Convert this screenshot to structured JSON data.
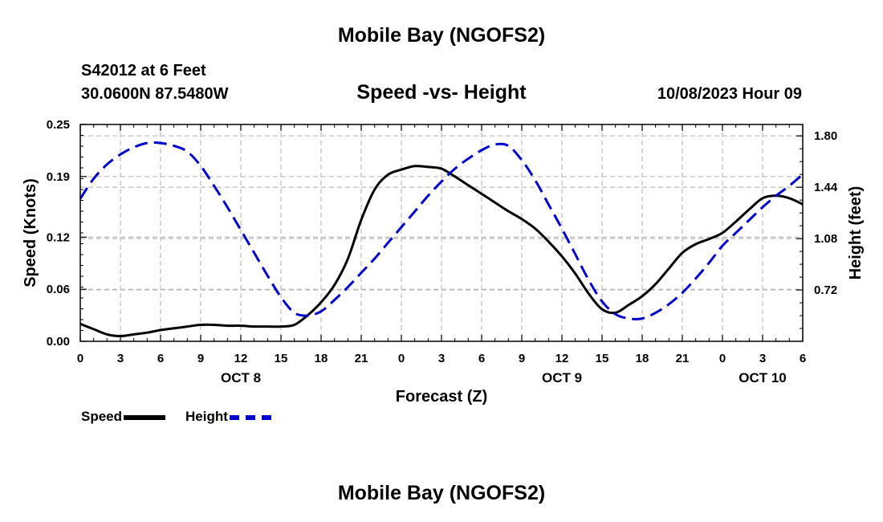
{
  "header": {
    "title": "Mobile Bay (NGOFS2)",
    "station": "S42012 at 6 Feet",
    "coords": "30.0600N  87.5480W",
    "subtitle": "Speed -vs- Height",
    "datetime": "10/08/2023 Hour 09"
  },
  "footer": {
    "title": "Mobile Bay (NGOFS2)"
  },
  "legend": {
    "speed_label": "Speed",
    "height_label": "Height"
  },
  "colors": {
    "speed": "#000000",
    "height": "#0000cc",
    "grid": "#bbbbbb"
  },
  "chart_data": {
    "type": "line",
    "title": "Speed -vs- Height",
    "xlabel": "Forecast (Z)",
    "ylabel_left": "Speed (Knots)",
    "ylabel_right": "Height (feet)",
    "x_range_hours": [
      0,
      54
    ],
    "x_ticks": [
      {
        "h": 0,
        "label": "0"
      },
      {
        "h": 3,
        "label": "3"
      },
      {
        "h": 6,
        "label": "6"
      },
      {
        "h": 9,
        "label": "9"
      },
      {
        "h": 12,
        "label": "12"
      },
      {
        "h": 15,
        "label": "15"
      },
      {
        "h": 18,
        "label": "18"
      },
      {
        "h": 21,
        "label": "21"
      },
      {
        "h": 24,
        "label": "0"
      },
      {
        "h": 27,
        "label": "3"
      },
      {
        "h": 30,
        "label": "6"
      },
      {
        "h": 33,
        "label": "9"
      },
      {
        "h": 36,
        "label": "12"
      },
      {
        "h": 39,
        "label": "15"
      },
      {
        "h": 42,
        "label": "18"
      },
      {
        "h": 45,
        "label": "21"
      },
      {
        "h": 48,
        "label": "0"
      },
      {
        "h": 51,
        "label": "3"
      },
      {
        "h": 54,
        "label": "6"
      }
    ],
    "date_labels": [
      {
        "h": 12,
        "label": "OCT 8"
      },
      {
        "h": 36,
        "label": "OCT 9"
      },
      {
        "h": 51,
        "label": "OCT 10"
      }
    ],
    "y_left": {
      "range": [
        0,
        0.25
      ],
      "ticks": [
        0.0,
        0.06,
        0.12,
        0.19,
        0.25
      ],
      "tick_labels": [
        "0.00",
        "0.06",
        "0.12",
        "0.19",
        "0.25"
      ]
    },
    "y_right": {
      "range": [
        0.36,
        1.88
      ],
      "ticks": [
        0.72,
        1.08,
        1.44,
        1.8
      ],
      "tick_labels": [
        "0.72",
        "1.08",
        "1.44",
        "1.80"
      ]
    },
    "series": [
      {
        "name": "Speed",
        "axis": "left",
        "x": [
          0,
          1,
          2,
          3,
          4,
          5,
          6,
          7,
          8,
          9,
          10,
          11,
          12,
          13,
          14,
          15,
          16,
          17,
          18,
          19,
          20,
          21,
          22,
          23,
          24,
          25,
          26,
          27,
          28,
          29,
          30,
          31,
          32,
          33,
          34,
          35,
          36,
          37,
          38,
          39,
          40,
          41,
          42,
          43,
          44,
          45,
          46,
          47,
          48,
          49,
          50,
          51,
          52,
          53,
          54
        ],
        "values": [
          0.02,
          0.014,
          0.008,
          0.006,
          0.008,
          0.01,
          0.013,
          0.015,
          0.017,
          0.019,
          0.019,
          0.018,
          0.018,
          0.017,
          0.017,
          0.017,
          0.019,
          0.03,
          0.045,
          0.065,
          0.095,
          0.14,
          0.175,
          0.192,
          0.198,
          0.202,
          0.201,
          0.199,
          0.19,
          0.18,
          0.17,
          0.16,
          0.15,
          0.141,
          0.13,
          0.115,
          0.098,
          0.078,
          0.055,
          0.037,
          0.033,
          0.042,
          0.052,
          0.066,
          0.084,
          0.102,
          0.112,
          0.118,
          0.125,
          0.138,
          0.152,
          0.165,
          0.168,
          0.165,
          0.158
        ]
      },
      {
        "name": "Height",
        "axis": "right",
        "x": [
          0,
          1,
          2,
          3,
          4,
          5,
          6,
          7,
          8,
          9,
          10,
          11,
          12,
          13,
          14,
          15,
          16,
          17,
          18,
          19,
          20,
          21,
          22,
          23,
          24,
          25,
          26,
          27,
          28,
          29,
          30,
          31,
          32,
          33,
          34,
          35,
          36,
          37,
          38,
          39,
          40,
          41,
          42,
          43,
          44,
          45,
          46,
          47,
          48,
          49,
          50,
          51,
          52,
          53,
          54
        ],
        "values": [
          1.36,
          1.5,
          1.6,
          1.67,
          1.72,
          1.75,
          1.75,
          1.73,
          1.69,
          1.59,
          1.45,
          1.3,
          1.14,
          0.98,
          0.82,
          0.67,
          0.56,
          0.54,
          0.57,
          0.65,
          0.74,
          0.84,
          0.94,
          1.05,
          1.16,
          1.27,
          1.38,
          1.48,
          1.57,
          1.64,
          1.7,
          1.74,
          1.73,
          1.63,
          1.49,
          1.32,
          1.15,
          0.97,
          0.79,
          0.64,
          0.55,
          0.52,
          0.52,
          0.56,
          0.62,
          0.7,
          0.8,
          0.91,
          1.03,
          1.12,
          1.21,
          1.3,
          1.38,
          1.45,
          1.53
        ]
      }
    ]
  }
}
